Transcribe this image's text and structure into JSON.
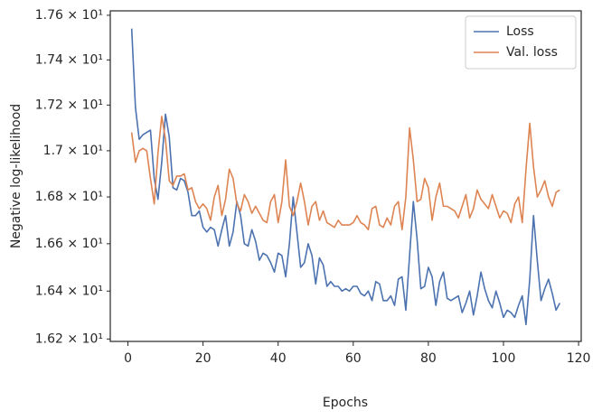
{
  "chart_data": {
    "type": "line",
    "xlabel": "Epochs",
    "ylabel": "Negative log-likelihood",
    "x": [
      1,
      2,
      3,
      4,
      5,
      6,
      7,
      8,
      9,
      10,
      11,
      12,
      13,
      14,
      15,
      16,
      17,
      18,
      19,
      20,
      21,
      22,
      23,
      24,
      25,
      26,
      27,
      28,
      29,
      30,
      31,
      32,
      33,
      34,
      35,
      36,
      37,
      38,
      39,
      40,
      41,
      42,
      43,
      44,
      45,
      46,
      47,
      48,
      49,
      50,
      51,
      52,
      53,
      54,
      55,
      56,
      57,
      58,
      59,
      60,
      61,
      62,
      63,
      64,
      65,
      66,
      67,
      68,
      69,
      70,
      71,
      72,
      73,
      74,
      75,
      76,
      77,
      78,
      79,
      80,
      81,
      82,
      83,
      84,
      85,
      86,
      87,
      88,
      89,
      90,
      91,
      92,
      93,
      94,
      95,
      96,
      97,
      98,
      99,
      100,
      101,
      102,
      103,
      104,
      105,
      106,
      107,
      108,
      109,
      110,
      111,
      112,
      113,
      114,
      115
    ],
    "series": [
      {
        "name": "Loss",
        "color": "#4c72b0",
        "values": [
          17.54,
          17.19,
          17.05,
          17.07,
          17.08,
          17.09,
          16.88,
          16.79,
          16.95,
          17.16,
          17.06,
          16.84,
          16.83,
          16.88,
          16.87,
          16.82,
          16.72,
          16.72,
          16.74,
          16.67,
          16.65,
          16.67,
          16.66,
          16.59,
          16.66,
          16.72,
          16.59,
          16.65,
          16.78,
          16.72,
          16.6,
          16.59,
          16.66,
          16.61,
          16.53,
          16.56,
          16.55,
          16.52,
          16.48,
          16.56,
          16.55,
          16.46,
          16.6,
          16.8,
          16.65,
          16.5,
          16.52,
          16.6,
          16.55,
          16.43,
          16.54,
          16.51,
          16.42,
          16.44,
          16.42,
          16.42,
          16.4,
          16.41,
          16.4,
          16.42,
          16.42,
          16.39,
          16.38,
          16.4,
          16.36,
          16.44,
          16.43,
          16.36,
          16.36,
          16.38,
          16.34,
          16.45,
          16.46,
          16.32,
          16.55,
          16.78,
          16.62,
          16.41,
          16.42,
          16.5,
          16.46,
          16.34,
          16.44,
          16.48,
          16.37,
          16.36,
          16.37,
          16.38,
          16.31,
          16.35,
          16.4,
          16.3,
          16.38,
          16.48,
          16.41,
          16.36,
          16.33,
          16.4,
          16.35,
          16.29,
          16.32,
          16.31,
          16.29,
          16.34,
          16.38,
          16.26,
          16.45,
          16.72,
          16.53,
          16.36,
          16.41,
          16.45,
          16.39,
          16.32,
          16.35
        ]
      },
      {
        "name": "Val. loss",
        "color": "#dd8452",
        "values": [
          17.08,
          16.95,
          17.0,
          17.01,
          17.0,
          16.88,
          16.77,
          16.99,
          17.15,
          17.05,
          16.87,
          16.85,
          16.89,
          16.89,
          16.9,
          16.83,
          16.84,
          16.78,
          16.75,
          16.77,
          16.75,
          16.7,
          16.8,
          16.85,
          16.72,
          16.79,
          16.92,
          16.88,
          16.77,
          16.74,
          16.81,
          16.78,
          16.73,
          16.76,
          16.73,
          16.7,
          16.69,
          16.78,
          16.81,
          16.69,
          16.78,
          16.96,
          16.76,
          16.72,
          16.78,
          16.86,
          16.78,
          16.68,
          16.76,
          16.78,
          16.7,
          16.74,
          16.69,
          16.68,
          16.67,
          16.7,
          16.68,
          16.68,
          16.68,
          16.69,
          16.72,
          16.69,
          16.68,
          16.66,
          16.75,
          16.76,
          16.68,
          16.67,
          16.71,
          16.68,
          16.76,
          16.78,
          16.66,
          16.8,
          17.1,
          16.96,
          16.78,
          16.79,
          16.88,
          16.84,
          16.7,
          16.8,
          16.86,
          16.76,
          16.76,
          16.75,
          16.74,
          16.71,
          16.76,
          16.81,
          16.71,
          16.75,
          16.83,
          16.79,
          16.77,
          16.75,
          16.81,
          16.76,
          16.71,
          16.74,
          16.73,
          16.69,
          16.77,
          16.8,
          16.69,
          16.92,
          17.12,
          16.93,
          16.8,
          16.83,
          16.87,
          16.8,
          16.76,
          16.82,
          16.83
        ]
      }
    ],
    "xlim": [
      -4.7,
      120.7
    ],
    "xticks": [
      0,
      20,
      40,
      60,
      80,
      100,
      120
    ],
    "ylim": [
      16.19,
      17.62
    ],
    "yscale": "log",
    "yticks": [
      {
        "value": 16.2,
        "label": "1.62 × 10¹"
      },
      {
        "value": 16.4,
        "label": "1.64 × 10¹"
      },
      {
        "value": 16.6,
        "label": "1.66 × 10¹"
      },
      {
        "value": 16.8,
        "label": "1.68 × 10¹"
      },
      {
        "value": 17.0,
        "label": "1.7 × 10¹"
      },
      {
        "value": 17.2,
        "label": "1.72 × 10¹"
      },
      {
        "value": 17.4,
        "label": "1.74 × 10¹"
      },
      {
        "value": 17.6,
        "label": "1.76 × 10¹"
      }
    ],
    "grid": false,
    "legend": "upper right"
  }
}
